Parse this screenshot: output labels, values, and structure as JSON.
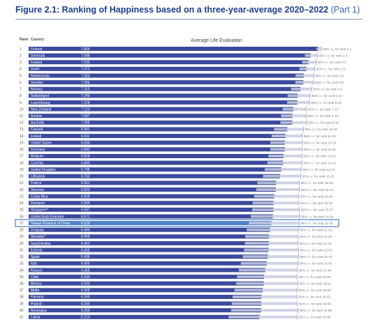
{
  "figure": {
    "title": "Figure 2.1: Ranking of Happiness based on a three-year-average 2020–2022",
    "part": "(Part 1)"
  },
  "chart_data": {
    "type": "bar",
    "orientation": "horizontal",
    "title": "Average Life Evaluation",
    "columns": [
      "Rank",
      "Country"
    ],
    "ci_label": "95% i.c. for rank",
    "highlight_rank": 27,
    "bar_color": "#3b4a9c",
    "highlight_color": "#4f7fc7",
    "rows": [
      {
        "rank": 1,
        "country": "Finland",
        "value": 7.804,
        "ci": "1-1"
      },
      {
        "rank": 2,
        "country": "Denmark",
        "value": 7.586,
        "ci": "2-4"
      },
      {
        "rank": 3,
        "country": "Iceland",
        "value": 7.53,
        "ci": "2-7"
      },
      {
        "rank": 4,
        "country": "Israel",
        "value": 7.473,
        "ci": "2-9"
      },
      {
        "rank": 5,
        "country": "Netherlands",
        "value": 7.403,
        "ci": "3-9"
      },
      {
        "rank": 6,
        "country": "Sweden",
        "value": 7.395,
        "ci": "3-9"
      },
      {
        "rank": 7,
        "country": "Norway",
        "value": 7.315,
        "ci": "3-9"
      },
      {
        "rank": 8,
        "country": "Switzerland",
        "value": 7.24,
        "ci": "5-12"
      },
      {
        "rank": 9,
        "country": "Luxembourg",
        "value": 7.228,
        "ci": "5-12"
      },
      {
        "rank": 10,
        "country": "New Zealand",
        "value": 7.123,
        "ci": "7-13"
      },
      {
        "rank": 11,
        "country": "Austria",
        "value": 7.097,
        "ci": "8-15"
      },
      {
        "rank": 12,
        "country": "Australia",
        "value": 7.095,
        "ci": "8-16"
      },
      {
        "rank": 13,
        "country": "Canada",
        "value": 6.961,
        "ci": "10-20"
      },
      {
        "rank": 14,
        "country": "Ireland",
        "value": 6.911,
        "ci": "11-20"
      },
      {
        "rank": 15,
        "country": "United States",
        "value": 6.894,
        "ci": "12-20"
      },
      {
        "rank": 16,
        "country": "Germany",
        "value": 6.892,
        "ci": "11-20"
      },
      {
        "rank": 17,
        "country": "Belgium",
        "value": 6.859,
        "ci": "13-20"
      },
      {
        "rank": 18,
        "country": "Czechia",
        "value": 6.845,
        "ci": "13-23"
      },
      {
        "rank": 19,
        "country": "United Kingdom",
        "value": 6.796,
        "ci": "13-23"
      },
      {
        "rank": 20,
        "country": "Lithuania",
        "value": 6.763,
        "ci": "13-25"
      },
      {
        "rank": 21,
        "country": "France",
        "value": 6.661,
        "ci": "18-30"
      },
      {
        "rank": 22,
        "country": "Slovenia",
        "value": 6.65,
        "ci": "18-32"
      },
      {
        "rank": 23,
        "country": "Costa Rica",
        "value": 6.609,
        "ci": "20-34"
      },
      {
        "rank": 24,
        "country": "Romania",
        "value": 6.589,
        "ci": "19-34"
      },
      {
        "rank": 25,
        "country": "Singapore*",
        "value": 6.587,
        "ci": "18-37"
      },
      {
        "rank": 26,
        "country": "United Arab Emirates",
        "value": 6.571,
        "ci": "20-34"
      },
      {
        "rank": 27,
        "country": "Taiwan Province of China",
        "value": 6.535,
        "ci": "21-40"
      },
      {
        "rank": 28,
        "country": "Uruguay",
        "value": 6.494,
        "ci": "21-41"
      },
      {
        "rank": 29,
        "country": "Slovakia*",
        "value": 6.469,
        "ci": "22-42"
      },
      {
        "rank": 30,
        "country": "Saudi Arabia",
        "value": 6.463,
        "ci": "21-42"
      },
      {
        "rank": 31,
        "country": "Estonia",
        "value": 6.455,
        "ci": "22-41"
      },
      {
        "rank": 32,
        "country": "Spain",
        "value": 6.436,
        "ci": "22-42"
      },
      {
        "rank": 33,
        "country": "Italy",
        "value": 6.405,
        "ci": "23-46"
      },
      {
        "rank": 34,
        "country": "Kosovo",
        "value": 6.368,
        "ci": "23-49"
      },
      {
        "rank": 35,
        "country": "Chile",
        "value": 6.334,
        "ci": "26-50"
      },
      {
        "rank": 36,
        "country": "Mexico",
        "value": 6.33,
        "ci": "26-51"
      },
      {
        "rank": 37,
        "country": "Malta",
        "value": 6.3,
        "ci": "28-53"
      },
      {
        "rank": 38,
        "country": "Panama",
        "value": 6.265,
        "ci": "29-55"
      },
      {
        "rank": 39,
        "country": "Poland",
        "value": 6.26,
        "ci": "29-55"
      },
      {
        "rank": 40,
        "country": "Nicaragua",
        "value": 6.259,
        "ci": "26-56"
      },
      {
        "rank": 41,
        "country": "Latvia",
        "value": 6.213,
        "ci": "33-55"
      }
    ]
  }
}
